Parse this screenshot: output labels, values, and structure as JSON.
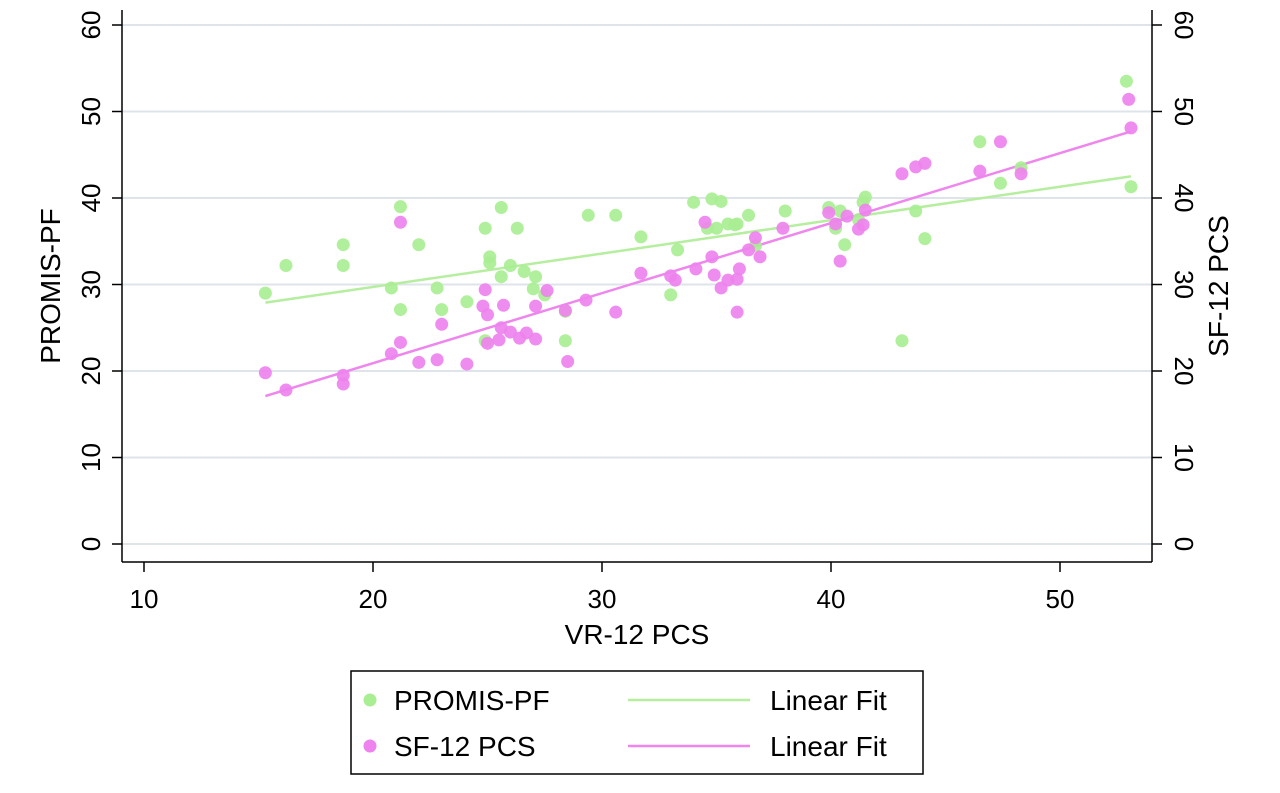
{
  "chart_data": {
    "type": "scatter",
    "xlabel": "VR-12 PCS",
    "ylabel_left": "PROMIS-PF",
    "ylabel_right": "SF-12 PCS",
    "xlim": [
      9,
      54
    ],
    "ylim": [
      -2,
      62
    ],
    "xticks": [
      "10",
      "20",
      "30",
      "40",
      "50"
    ],
    "yticks": [
      "0",
      "10",
      "20",
      "30",
      "40",
      "50",
      "60"
    ],
    "grid": true,
    "legend_position": "bottom",
    "legend": {
      "series1_label": "PROMIS-PF",
      "fit1_label": "Linear Fit",
      "series2_label": "SF-12 PCS",
      "fit2_label": "Linear Fit"
    },
    "colors": {
      "promis": "#a9ee92",
      "promis_fit": "#b5ee9e",
      "sf12": "#ee82ee",
      "sf12_fit": "#ee86ee",
      "grid": "#dfe4ea",
      "axis": "#000000"
    },
    "series": [
      {
        "name": "PROMIS-PF",
        "points": [
          [
            15.3,
            29.0
          ],
          [
            16.2,
            32.2
          ],
          [
            18.7,
            34.6
          ],
          [
            18.7,
            32.2
          ],
          [
            20.8,
            29.6
          ],
          [
            21.2,
            39.0
          ],
          [
            21.2,
            27.1
          ],
          [
            22.0,
            34.6
          ],
          [
            22.8,
            29.6
          ],
          [
            23.0,
            27.1
          ],
          [
            24.1,
            28.0
          ],
          [
            24.9,
            23.5
          ],
          [
            24.9,
            36.5
          ],
          [
            25.1,
            33.2
          ],
          [
            25.1,
            32.5
          ],
          [
            25.6,
            38.9
          ],
          [
            25.6,
            30.9
          ],
          [
            26.0,
            32.2
          ],
          [
            26.3,
            36.5
          ],
          [
            26.6,
            31.5
          ],
          [
            27.0,
            29.5
          ],
          [
            27.1,
            30.9
          ],
          [
            27.5,
            28.8
          ],
          [
            28.4,
            23.5
          ],
          [
            28.4,
            26.9
          ],
          [
            29.4,
            38.0
          ],
          [
            30.6,
            38.0
          ],
          [
            31.7,
            35.5
          ],
          [
            33.0,
            28.8
          ],
          [
            33.3,
            34.0
          ],
          [
            34.0,
            39.5
          ],
          [
            34.6,
            36.5
          ],
          [
            34.8,
            39.9
          ],
          [
            35.0,
            36.5
          ],
          [
            35.2,
            39.6
          ],
          [
            35.5,
            37.0
          ],
          [
            35.8,
            36.9
          ],
          [
            35.9,
            37.0
          ],
          [
            36.4,
            38.0
          ],
          [
            36.7,
            34.5
          ],
          [
            38.0,
            38.5
          ],
          [
            39.9,
            38.9
          ],
          [
            40.2,
            36.5
          ],
          [
            40.4,
            38.5
          ],
          [
            40.6,
            34.6
          ],
          [
            41.2,
            37.5
          ],
          [
            41.4,
            39.5
          ],
          [
            41.5,
            40.1
          ],
          [
            43.1,
            23.5
          ],
          [
            43.7,
            38.5
          ],
          [
            44.1,
            35.3
          ],
          [
            46.5,
            46.5
          ],
          [
            47.4,
            41.7
          ],
          [
            48.3,
            43.5
          ],
          [
            52.9,
            53.5
          ],
          [
            53.1,
            41.3
          ]
        ]
      },
      {
        "name": "SF-12 PCS",
        "points": [
          [
            15.3,
            19.8
          ],
          [
            16.2,
            17.8
          ],
          [
            18.7,
            19.5
          ],
          [
            18.7,
            18.5
          ],
          [
            20.8,
            22.0
          ],
          [
            21.2,
            23.3
          ],
          [
            21.2,
            37.2
          ],
          [
            22.0,
            21.0
          ],
          [
            22.8,
            21.3
          ],
          [
            23.0,
            25.4
          ],
          [
            24.1,
            20.8
          ],
          [
            24.8,
            27.5
          ],
          [
            24.9,
            29.4
          ],
          [
            25.0,
            23.2
          ],
          [
            25.0,
            26.5
          ],
          [
            25.5,
            23.6
          ],
          [
            25.6,
            25.0
          ],
          [
            25.7,
            27.6
          ],
          [
            26.0,
            24.5
          ],
          [
            26.4,
            23.8
          ],
          [
            26.7,
            24.4
          ],
          [
            27.1,
            27.5
          ],
          [
            27.1,
            23.7
          ],
          [
            27.6,
            29.3
          ],
          [
            28.4,
            27.0
          ],
          [
            28.5,
            21.1
          ],
          [
            29.3,
            28.2
          ],
          [
            30.6,
            26.8
          ],
          [
            31.7,
            31.3
          ],
          [
            33.0,
            31.0
          ],
          [
            33.2,
            30.5
          ],
          [
            34.1,
            31.8
          ],
          [
            34.5,
            37.2
          ],
          [
            34.8,
            33.2
          ],
          [
            34.9,
            31.1
          ],
          [
            35.2,
            29.6
          ],
          [
            35.5,
            30.5
          ],
          [
            35.9,
            30.6
          ],
          [
            35.9,
            26.8
          ],
          [
            36.0,
            31.8
          ],
          [
            36.4,
            34.0
          ],
          [
            36.7,
            35.4
          ],
          [
            36.9,
            33.2
          ],
          [
            37.9,
            36.5
          ],
          [
            39.9,
            38.3
          ],
          [
            40.2,
            37.0
          ],
          [
            40.4,
            32.7
          ],
          [
            40.7,
            37.9
          ],
          [
            41.2,
            36.4
          ],
          [
            41.4,
            36.9
          ],
          [
            41.5,
            38.6
          ],
          [
            43.1,
            42.8
          ],
          [
            43.7,
            43.6
          ],
          [
            44.1,
            44.0
          ],
          [
            46.5,
            43.1
          ],
          [
            47.4,
            46.5
          ],
          [
            48.3,
            42.8
          ],
          [
            53.0,
            51.4
          ],
          [
            53.1,
            48.1
          ]
        ]
      }
    ],
    "fits": [
      {
        "name": "PROMIS-PF Linear Fit",
        "x": [
          15.3,
          53.1
        ],
        "y": [
          27.9,
          42.5
        ]
      },
      {
        "name": "SF-12 PCS Linear Fit",
        "x": [
          15.3,
          53.1
        ],
        "y": [
          17.1,
          47.7
        ]
      }
    ]
  }
}
